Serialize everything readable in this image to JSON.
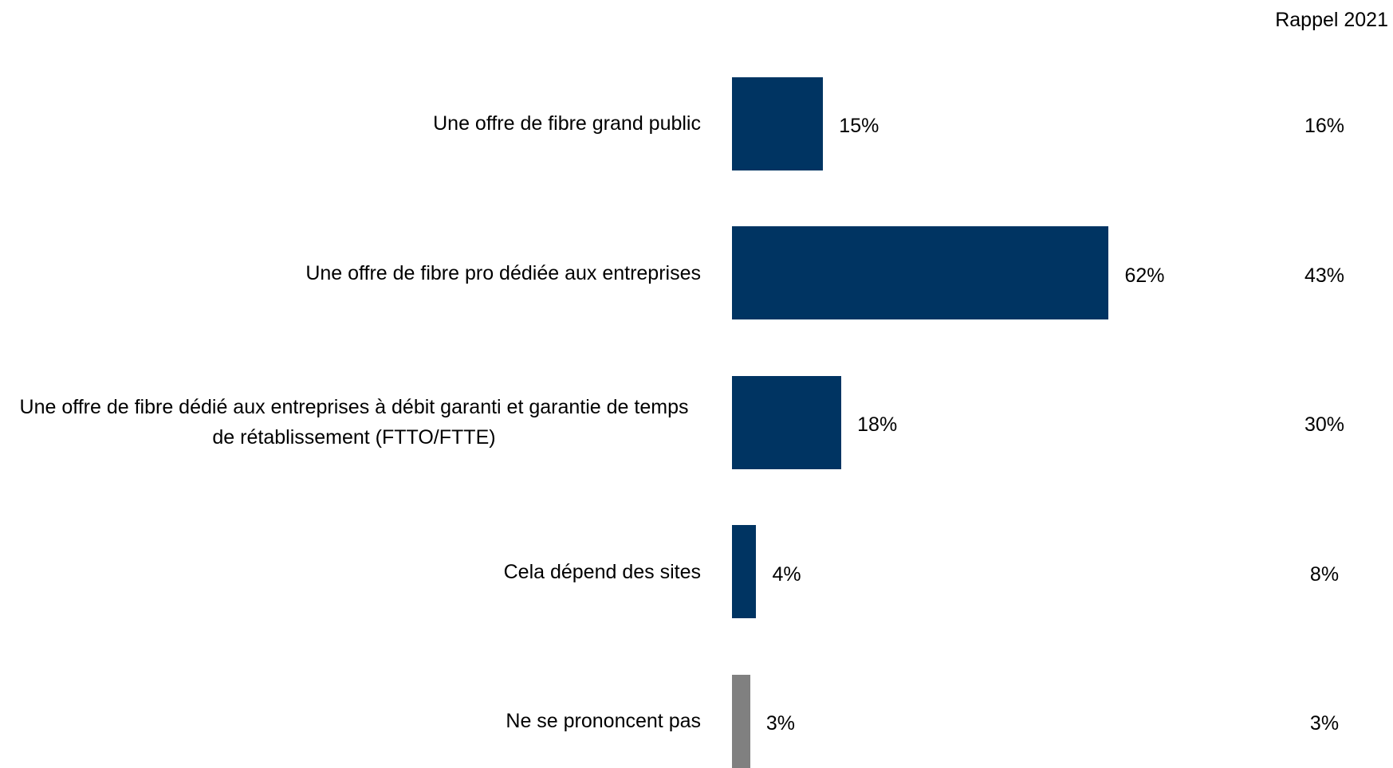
{
  "chart_data": {
    "type": "bar",
    "orientation": "horizontal",
    "categories": [
      "Une offre de fibre grand public",
      "Une offre de fibre pro dédiée aux entreprises",
      "Une offre de fibre dédié aux entreprises à débit garanti et garantie de temps de rétablissement (FTTO/FTTE)",
      "Cela dépend des sites",
      "Ne se prononcent pas"
    ],
    "values": [
      15,
      62,
      18,
      4,
      3
    ],
    "value_labels": [
      "15%",
      "62%",
      "18%",
      "4%",
      "3%"
    ],
    "colors": [
      "#003462",
      "#003462",
      "#003462",
      "#003462",
      "#808080"
    ],
    "comparison": {
      "name": "Rappel 2021",
      "values": [
        16,
        43,
        30,
        8,
        3
      ],
      "value_labels": [
        "16%",
        "43%",
        "30%",
        "8%",
        "3%"
      ]
    }
  }
}
